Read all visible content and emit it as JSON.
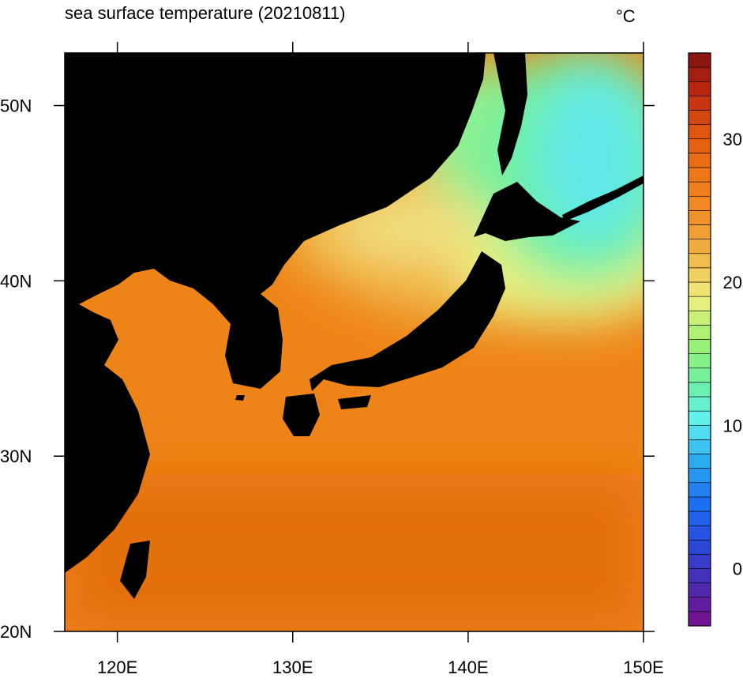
{
  "chart_data": {
    "type": "contour-map",
    "title": "sea surface temperature (20210811)",
    "unit": "°C",
    "xlim": [
      117,
      150
    ],
    "ylim": [
      20,
      53
    ],
    "xticks": [
      {
        "value": 120,
        "label": "120E"
      },
      {
        "value": 130,
        "label": "130E"
      },
      {
        "value": 140,
        "label": "140E"
      },
      {
        "value": 150,
        "label": "150E"
      }
    ],
    "yticks": [
      {
        "value": 20,
        "label": "20N"
      },
      {
        "value": 30,
        "label": "30N"
      },
      {
        "value": 40,
        "label": "40N"
      },
      {
        "value": 50,
        "label": "50N"
      }
    ],
    "land_color": "#000000",
    "colorbar": {
      "lim": [
        -4,
        36
      ],
      "ticks": [
        0,
        10,
        20,
        30
      ],
      "colors": [
        "#7a0f8a",
        "#4a2ab0",
        "#2a48d8",
        "#1c70f0",
        "#2aa8f0",
        "#60f0f0",
        "#70f0a0",
        "#a0f070",
        "#f0f080",
        "#f0b848",
        "#f09028",
        "#f07818",
        "#e05a10",
        "#c02a10",
        "#801010"
      ]
    }
  }
}
